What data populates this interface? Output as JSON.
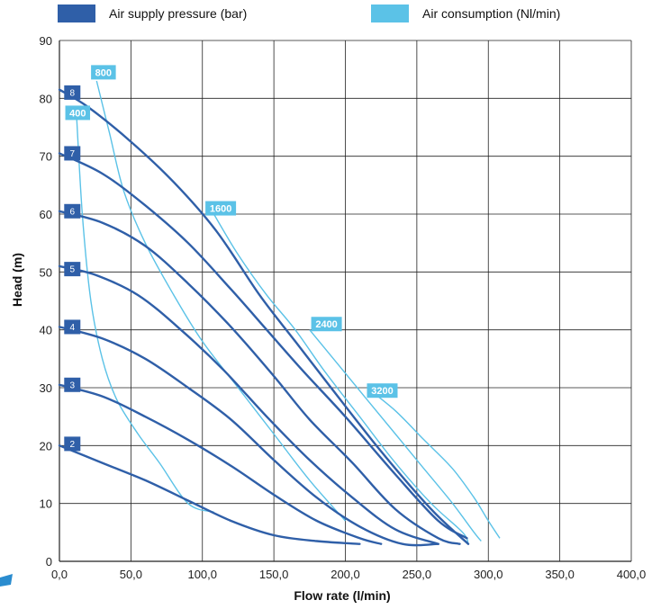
{
  "chart_data": {
    "type": "line",
    "xlabel": "Flow rate (l/min)",
    "ylabel": "Head (m)",
    "xlim": [
      0,
      400
    ],
    "ylim": [
      0,
      90
    ],
    "xticks": [
      "0,0",
      "50,0",
      "100,0",
      "150,0",
      "200,0",
      "250,0",
      "300,0",
      "350,0",
      "400,0"
    ],
    "yticks": [
      "0",
      "10",
      "20",
      "30",
      "40",
      "50",
      "60",
      "70",
      "80",
      "90"
    ],
    "grid": true,
    "legend_placement": "top",
    "legend": [
      {
        "label": "Air supply pressure (bar)",
        "color": "#2f5fa8"
      },
      {
        "label": "Air consumption (Nl/min)",
        "color": "#5bc2e7"
      }
    ],
    "pressure_series": [
      {
        "name": "8",
        "color": "#2f5fa8",
        "points": [
          [
            0,
            81.5
          ],
          [
            20,
            78.5
          ],
          [
            50,
            72.5
          ],
          [
            80,
            65.5
          ],
          [
            110,
            57
          ],
          [
            140,
            46
          ],
          [
            165,
            38
          ],
          [
            190,
            30
          ],
          [
            225,
            19
          ],
          [
            260,
            9
          ],
          [
            286,
            3
          ]
        ]
      },
      {
        "name": "7",
        "color": "#2f5fa8",
        "points": [
          [
            0,
            70.5
          ],
          [
            30,
            67
          ],
          [
            60,
            61.5
          ],
          [
            90,
            55
          ],
          [
            120,
            47
          ],
          [
            145,
            40
          ],
          [
            170,
            33
          ],
          [
            200,
            25
          ],
          [
            235,
            15
          ],
          [
            265,
            7
          ],
          [
            285,
            4
          ]
        ]
      },
      {
        "name": "6",
        "color": "#2f5fa8",
        "points": [
          [
            0,
            60.5
          ],
          [
            30,
            58.5
          ],
          [
            60,
            54.5
          ],
          [
            90,
            48
          ],
          [
            120,
            40.5
          ],
          [
            150,
            32
          ],
          [
            175,
            24.5
          ],
          [
            205,
            17
          ],
          [
            235,
            9
          ],
          [
            265,
            4
          ],
          [
            280,
            3
          ]
        ]
      },
      {
        "name": "5",
        "color": "#2f5fa8",
        "points": [
          [
            0,
            51
          ],
          [
            25,
            49.5
          ],
          [
            55,
            46
          ],
          [
            85,
            40
          ],
          [
            115,
            33
          ],
          [
            145,
            25
          ],
          [
            175,
            17.5
          ],
          [
            205,
            11
          ],
          [
            235,
            5.5
          ],
          [
            265,
            3
          ]
        ]
      },
      {
        "name": "4",
        "color": "#2f5fa8",
        "points": [
          [
            0,
            40.5
          ],
          [
            30,
            38.5
          ],
          [
            60,
            35
          ],
          [
            90,
            30
          ],
          [
            120,
            24.5
          ],
          [
            150,
            17.5
          ],
          [
            180,
            11
          ],
          [
            210,
            6
          ],
          [
            240,
            3
          ],
          [
            265,
            3
          ]
        ]
      },
      {
        "name": "3",
        "color": "#2f5fa8",
        "points": [
          [
            0,
            30.5
          ],
          [
            30,
            28.5
          ],
          [
            60,
            25
          ],
          [
            90,
            21
          ],
          [
            120,
            16.5
          ],
          [
            150,
            11.5
          ],
          [
            180,
            7
          ],
          [
            210,
            4
          ],
          [
            225,
            3
          ]
        ]
      },
      {
        "name": "2",
        "color": "#2f5fa8",
        "points": [
          [
            0,
            20
          ],
          [
            30,
            17
          ],
          [
            60,
            14
          ],
          [
            90,
            10.5
          ],
          [
            120,
            7
          ],
          [
            150,
            4.5
          ],
          [
            180,
            3.5
          ],
          [
            210,
            3
          ]
        ]
      }
    ],
    "consumption_series": [
      {
        "name": "400",
        "color": "#5bc2e7",
        "points": [
          [
            12,
            77
          ],
          [
            16,
            60
          ],
          [
            22,
            45
          ],
          [
            30,
            35
          ],
          [
            40,
            28
          ],
          [
            55,
            22
          ],
          [
            70,
            17
          ],
          [
            90,
            10
          ],
          [
            108,
            8.5
          ]
        ]
      },
      {
        "name": "800",
        "color": "#5bc2e7",
        "points": [
          [
            26,
            83
          ],
          [
            35,
            74
          ],
          [
            45,
            64
          ],
          [
            60,
            55
          ],
          [
            80,
            46
          ],
          [
            100,
            38
          ],
          [
            125,
            30
          ],
          [
            150,
            22
          ],
          [
            175,
            14
          ],
          [
            200,
            7
          ]
        ]
      },
      {
        "name": "1600",
        "color": "#5bc2e7",
        "points": [
          [
            108,
            60
          ],
          [
            125,
            53
          ],
          [
            145,
            46
          ],
          [
            165,
            40
          ],
          [
            185,
            33
          ],
          [
            210,
            25
          ],
          [
            235,
            17
          ],
          [
            260,
            10
          ],
          [
            282,
            5
          ],
          [
            286,
            3
          ]
        ]
      },
      {
        "name": "2400",
        "color": "#5bc2e7",
        "points": [
          [
            175,
            40
          ],
          [
            195,
            34
          ],
          [
            215,
            28
          ],
          [
            235,
            22
          ],
          [
            255,
            16
          ],
          [
            275,
            10
          ],
          [
            290,
            5
          ],
          [
            295,
            3.5
          ]
        ]
      },
      {
        "name": "3200",
        "color": "#5bc2e7",
        "points": [
          [
            215,
            30
          ],
          [
            235,
            26
          ],
          [
            255,
            21
          ],
          [
            275,
            16
          ],
          [
            290,
            11
          ],
          [
            300,
            7
          ],
          [
            308,
            4
          ]
        ]
      }
    ],
    "pressure_labels": [
      {
        "text": "8",
        "x": 9,
        "y": 81
      },
      {
        "text": "7",
        "x": 9,
        "y": 70.5
      },
      {
        "text": "6",
        "x": 9,
        "y": 60.5
      },
      {
        "text": "5",
        "x": 9,
        "y": 50.5
      },
      {
        "text": "4",
        "x": 9,
        "y": 40.5
      },
      {
        "text": "3",
        "x": 9,
        "y": 30.5
      },
      {
        "text": "2",
        "x": 9,
        "y": 20.3
      }
    ],
    "consumption_labels": [
      {
        "text": "800",
        "x": 24,
        "y": 84.5
      },
      {
        "text": "400",
        "x": 6,
        "y": 77.5
      },
      {
        "text": "1600",
        "x": 104,
        "y": 61
      },
      {
        "text": "2400",
        "x": 178,
        "y": 41
      },
      {
        "text": "3200",
        "x": 217,
        "y": 29.5
      }
    ]
  }
}
